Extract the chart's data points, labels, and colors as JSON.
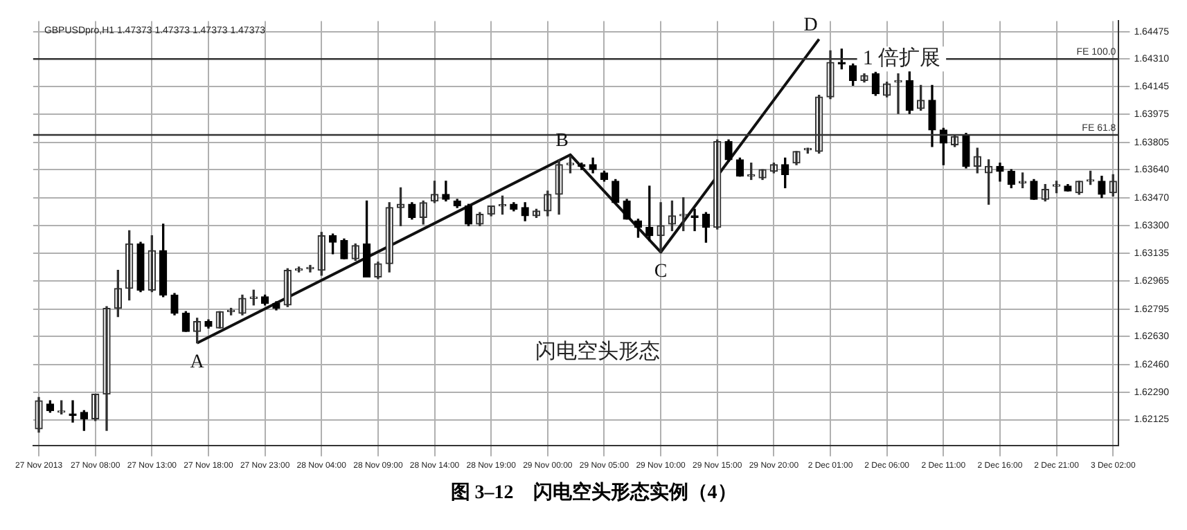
{
  "chart_data": {
    "type": "candlestick",
    "title": "图 3–12　闪电空头形态实例（4）",
    "subtitle": "GBPUSDpro,H1 1.47373 1.47373 1.47373 1.47373",
    "categories": [
      "27 Nov 2013",
      null,
      null,
      null,
      null,
      "27 Nov 08:00",
      null,
      null,
      null,
      null,
      "27 Nov 13:00",
      null,
      null,
      null,
      null,
      "27 Nov 18:00",
      null,
      null,
      null,
      null,
      "27 Nov 23:00",
      null,
      null,
      null,
      null,
      "28 Nov 04:00",
      null,
      null,
      null,
      null,
      "28 Nov 09:00",
      null,
      null,
      null,
      null,
      "28 Nov 14:00",
      null,
      null,
      null,
      null,
      "28 Nov 19:00",
      null,
      null,
      null,
      null,
      "29 Nov 00:00",
      null,
      null,
      null,
      null,
      "29 Nov 05:00",
      null,
      null,
      null,
      null,
      "29 Nov 10:00",
      null,
      null,
      null,
      null,
      "29 Nov 15:00",
      null,
      null,
      null,
      null,
      "29 Nov 20:00",
      null,
      null,
      null,
      null,
      "2 Dec 01:00",
      null,
      null,
      null,
      null,
      "2 Dec 06:00",
      null,
      null,
      null,
      null,
      "2 Dec 11:00",
      null,
      null,
      null,
      null,
      "2 Dec 16:00",
      null,
      null,
      null,
      null,
      "2 Dec 21:00",
      null,
      null,
      null,
      null,
      "3 Dec 02:00"
    ],
    "ohlc": [
      [
        1.6207,
        1.6226,
        1.6205,
        1.6224
      ],
      [
        1.6222,
        1.6224,
        1.6217,
        1.6218
      ],
      [
        1.6217,
        1.6224,
        1.6216,
        1.6217
      ],
      [
        1.6216,
        1.6224,
        1.6211,
        1.6215
      ],
      [
        1.6217,
        1.6218,
        1.6206,
        1.6213
      ],
      [
        1.6213,
        1.6228,
        1.6212,
        1.6228
      ],
      [
        1.6228,
        1.6281,
        1.6206,
        1.628
      ],
      [
        1.628,
        1.6303,
        1.6275,
        1.6292
      ],
      [
        1.6292,
        1.6327,
        1.6285,
        1.6319
      ],
      [
        1.6319,
        1.632,
        1.629,
        1.6291
      ],
      [
        1.6291,
        1.6324,
        1.629,
        1.6315
      ],
      [
        1.6315,
        1.6331,
        1.6287,
        1.6288
      ],
      [
        1.6288,
        1.6289,
        1.6276,
        1.6277
      ],
      [
        1.6277,
        1.6278,
        1.6266,
        1.6266
      ],
      [
        1.6266,
        1.6274,
        1.6259,
        1.6272
      ],
      [
        1.6272,
        1.6273,
        1.6268,
        1.6269
      ],
      [
        1.6268,
        1.6278,
        1.6268,
        1.6278
      ],
      [
        1.6278,
        1.628,
        1.6276,
        1.6278
      ],
      [
        1.6277,
        1.6288,
        1.6276,
        1.6286
      ],
      [
        1.6286,
        1.6291,
        1.6282,
        1.6286
      ],
      [
        1.6287,
        1.6288,
        1.6282,
        1.6283
      ],
      [
        1.6283,
        1.6284,
        1.6279,
        1.628
      ],
      [
        1.6282,
        1.6304,
        1.6281,
        1.6303
      ],
      [
        1.6303,
        1.6305,
        1.6302,
        1.6303
      ],
      [
        1.6304,
        1.6306,
        1.6302,
        1.6304
      ],
      [
        1.6303,
        1.6326,
        1.63,
        1.6324
      ],
      [
        1.6324,
        1.6325,
        1.6313,
        1.632
      ],
      [
        1.6321,
        1.6322,
        1.631,
        1.631
      ],
      [
        1.631,
        1.6319,
        1.6309,
        1.6318
      ],
      [
        1.6319,
        1.6345,
        1.6299,
        1.6299
      ],
      [
        1.6299,
        1.6308,
        1.6298,
        1.6307
      ],
      [
        1.6307,
        1.6344,
        1.6302,
        1.6341
      ],
      [
        1.6341,
        1.6353,
        1.633,
        1.6343
      ],
      [
        1.6343,
        1.6344,
        1.6334,
        1.6335
      ],
      [
        1.6335,
        1.6345,
        1.6331,
        1.6344
      ],
      [
        1.6345,
        1.6357,
        1.6344,
        1.6349
      ],
      [
        1.6349,
        1.6357,
        1.6345,
        1.6346
      ],
      [
        1.6345,
        1.6346,
        1.6341,
        1.6342
      ],
      [
        1.6342,
        1.6343,
        1.633,
        1.6331
      ],
      [
        1.6331,
        1.6338,
        1.633,
        1.6337
      ],
      [
        1.6337,
        1.6342,
        1.6336,
        1.6342
      ],
      [
        1.6342,
        1.6348,
        1.6337,
        1.6342
      ],
      [
        1.6343,
        1.6344,
        1.6339,
        1.634
      ],
      [
        1.6341,
        1.6344,
        1.6333,
        1.6336
      ],
      [
        1.6336,
        1.634,
        1.6335,
        1.6339
      ],
      [
        1.6339,
        1.6351,
        1.6336,
        1.6349
      ],
      [
        1.6349,
        1.637,
        1.6337,
        1.6367
      ],
      [
        1.6367,
        1.6372,
        1.6362,
        1.6367
      ],
      [
        1.6367,
        1.6368,
        1.6364,
        1.6366
      ],
      [
        1.6367,
        1.6371,
        1.6362,
        1.6364
      ],
      [
        1.6362,
        1.6363,
        1.6357,
        1.6358
      ],
      [
        1.6357,
        1.6358,
        1.6344,
        1.6344
      ],
      [
        1.6345,
        1.6346,
        1.6334,
        1.6334
      ],
      [
        1.6333,
        1.6334,
        1.6323,
        1.6329
      ],
      [
        1.6329,
        1.6354,
        1.6321,
        1.6324
      ],
      [
        1.6324,
        1.6344,
        1.6314,
        1.633
      ],
      [
        1.6331,
        1.6345,
        1.6327,
        1.6336
      ],
      [
        1.6336,
        1.6347,
        1.6327,
        1.6336
      ],
      [
        1.6336,
        1.634,
        1.6327,
        1.6335
      ],
      [
        1.6337,
        1.6338,
        1.632,
        1.6329
      ],
      [
        1.6329,
        1.6382,
        1.6328,
        1.6381
      ],
      [
        1.6381,
        1.6382,
        1.6369,
        1.637
      ],
      [
        1.637,
        1.6371,
        1.636,
        1.636
      ],
      [
        1.636,
        1.6368,
        1.6358,
        1.636
      ],
      [
        1.6359,
        1.6364,
        1.6358,
        1.6364
      ],
      [
        1.6363,
        1.6368,
        1.6362,
        1.6367
      ],
      [
        1.6367,
        1.6371,
        1.6353,
        1.6361
      ],
      [
        1.6368,
        1.6375,
        1.6367,
        1.6375
      ],
      [
        1.6376,
        1.6377,
        1.6374,
        1.6376
      ],
      [
        1.6375,
        1.6409,
        1.6374,
        1.6408
      ],
      [
        1.6408,
        1.6436,
        1.6407,
        1.6429
      ],
      [
        1.6429,
        1.6437,
        1.6425,
        1.6428
      ],
      [
        1.6427,
        1.6428,
        1.6415,
        1.6418
      ],
      [
        1.6418,
        1.6422,
        1.6417,
        1.6421
      ],
      [
        1.6422,
        1.6423,
        1.6409,
        1.641
      ],
      [
        1.6409,
        1.6417,
        1.6408,
        1.6416
      ],
      [
        1.6417,
        1.6422,
        1.6398,
        1.6418
      ],
      [
        1.6418,
        1.6424,
        1.6398,
        1.64
      ],
      [
        1.6401,
        1.6415,
        1.64,
        1.6406
      ],
      [
        1.6406,
        1.6415,
        1.6378,
        1.6388
      ],
      [
        1.6388,
        1.6389,
        1.6367,
        1.638
      ],
      [
        1.6379,
        1.6385,
        1.6378,
        1.6384
      ],
      [
        1.6385,
        1.6386,
        1.6365,
        1.6366
      ],
      [
        1.6366,
        1.6377,
        1.6362,
        1.6372
      ],
      [
        1.6362,
        1.637,
        1.6343,
        1.6366
      ],
      [
        1.6366,
        1.6368,
        1.6357,
        1.6363
      ],
      [
        1.6363,
        1.6364,
        1.6353,
        1.6355
      ],
      [
        1.6356,
        1.6362,
        1.6353,
        1.6356
      ],
      [
        1.6357,
        1.6358,
        1.6346,
        1.6346
      ],
      [
        1.6346,
        1.6355,
        1.6345,
        1.6352
      ],
      [
        1.6354,
        1.6357,
        1.635,
        1.6354
      ],
      [
        1.6354,
        1.6355,
        1.6351,
        1.6351
      ],
      [
        1.635,
        1.6357,
        1.6349,
        1.6357
      ],
      [
        1.6357,
        1.6363,
        1.6355,
        1.6357
      ],
      [
        1.6357,
        1.636,
        1.6347,
        1.6349
      ],
      [
        1.635,
        1.6361,
        1.6348,
        1.6357
      ]
    ],
    "series": [
      {
        "type": "line",
        "color": "#111111",
        "values": [
          null,
          null,
          null,
          null,
          null,
          null,
          null,
          null,
          null,
          null,
          null,
          null,
          null,
          null,
          1.6259,
          null,
          null,
          null,
          null,
          null,
          null,
          null,
          null,
          null,
          null,
          null,
          null,
          null,
          null,
          null,
          null,
          null,
          null,
          null,
          null,
          null,
          null,
          null,
          null,
          null,
          null,
          null,
          null,
          null,
          null,
          null,
          null,
          1.6373,
          null,
          null,
          null,
          null,
          null,
          null,
          null,
          1.6314,
          null,
          null,
          null,
          null,
          null,
          null,
          null,
          null,
          null,
          null,
          null,
          null,
          null,
          1.6443,
          null,
          null,
          null,
          null,
          null,
          null,
          null,
          null,
          null,
          null,
          null,
          null,
          null,
          null,
          null,
          null,
          null,
          null,
          null,
          null,
          null,
          null,
          null,
          null,
          null,
          null
        ],
        "value_labels": [
          null,
          null,
          null,
          null,
          null,
          null,
          null,
          null,
          null,
          null,
          null,
          null,
          null,
          null,
          "A",
          null,
          null,
          null,
          null,
          null,
          null,
          null,
          null,
          null,
          null,
          null,
          null,
          null,
          null,
          null,
          null,
          null,
          null,
          null,
          null,
          null,
          null,
          null,
          null,
          null,
          null,
          null,
          null,
          null,
          null,
          null,
          null,
          "B",
          null,
          null,
          null,
          null,
          null,
          null,
          null,
          "C",
          null,
          null,
          null,
          null,
          null,
          null,
          null,
          null,
          null,
          null,
          null,
          null,
          null,
          "D",
          null,
          null,
          null,
          null,
          null,
          null,
          null,
          null,
          null,
          null,
          null,
          null,
          null,
          null,
          null,
          null,
          null,
          null,
          null,
          null,
          null,
          null,
          null,
          null,
          null,
          null
        ]
      }
    ],
    "ylim": [
      1.6197,
      1.6454
    ],
    "yticks": [
      1.64475,
      {
        "value": 1.6431,
        "label": "1.64310"
      },
      1.64145,
      1.63975,
      1.63805,
      {
        "value": 1.6364,
        "label": "1.63640"
      },
      {
        "value": 1.6347,
        "label": "1.63470"
      },
      {
        "value": 1.633,
        "label": "1.63300"
      },
      1.63135,
      1.62965,
      1.62795,
      {
        "value": 1.6263,
        "label": "1.62630"
      },
      {
        "value": 1.6246,
        "label": "1.62460"
      },
      {
        "value": 1.6229,
        "label": "1.62290"
      },
      1.62125
    ],
    "ref_lines": [
      {
        "axis": "y",
        "value": 1.6431,
        "label": "FE 100.0",
        "color": "#333333"
      },
      {
        "axis": "y",
        "value": 1.6385,
        "label": "FE 61.8",
        "color": "#333333"
      }
    ],
    "annotations": [
      {
        "text": "1 倍扩展",
        "y": 1.6431
      },
      "闪电空头形态"
    ],
    "grid": true,
    "legend": false
  }
}
